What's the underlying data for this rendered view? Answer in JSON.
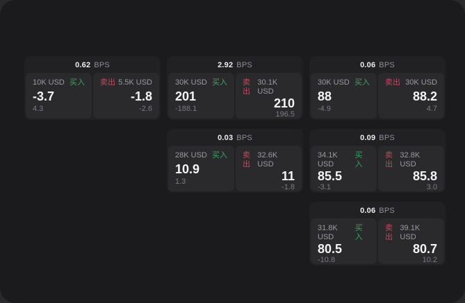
{
  "page": {
    "surface_color": "#1b1b1d",
    "backdrop_color": "#2a2a2d",
    "card_color": "#212124",
    "panel_color": "#2a2a2d"
  },
  "colors": {
    "buy": "#36a65e",
    "sell": "#c4495c"
  },
  "labels": {
    "bps_unit": "BPS",
    "buy": "买入",
    "sell": "卖出"
  },
  "cards": [
    {
      "bps": "0.62",
      "buy": {
        "size": "10K USD",
        "value": "-3.7",
        "delta": "4.3"
      },
      "sell": {
        "size": "5.5K USD",
        "value": "-1.8",
        "delta": "-2.6"
      }
    },
    {
      "bps": "2.92",
      "buy": {
        "size": "30K USD",
        "value": "201",
        "delta": "-188.1"
      },
      "sell": {
        "size": "30.1K USD",
        "value": "210",
        "delta": "196.5"
      }
    },
    {
      "bps": "0.06",
      "buy": {
        "size": "30K USD",
        "value": "88",
        "delta": "-4.9"
      },
      "sell": {
        "size": "30K USD",
        "value": "88.2",
        "delta": "4.7"
      }
    },
    {
      "bps": "0.03",
      "buy": {
        "size": "28K USD",
        "value": "10.9",
        "delta": "1.3"
      },
      "sell": {
        "size": "32.6K USD",
        "value": "11",
        "delta": "-1.8"
      }
    },
    {
      "bps": "0.09",
      "buy": {
        "size": "34.1K USD",
        "value": "85.5",
        "delta": "-3.1"
      },
      "sell": {
        "size": "32.8K USD",
        "value": "85.8",
        "delta": "3.0"
      }
    },
    {
      "bps": "0.06",
      "buy": {
        "size": "31.8K USD",
        "value": "80.5",
        "delta": "-10.8"
      },
      "sell": {
        "size": "39.1K USD",
        "value": "80.7",
        "delta": "10.2"
      }
    }
  ]
}
